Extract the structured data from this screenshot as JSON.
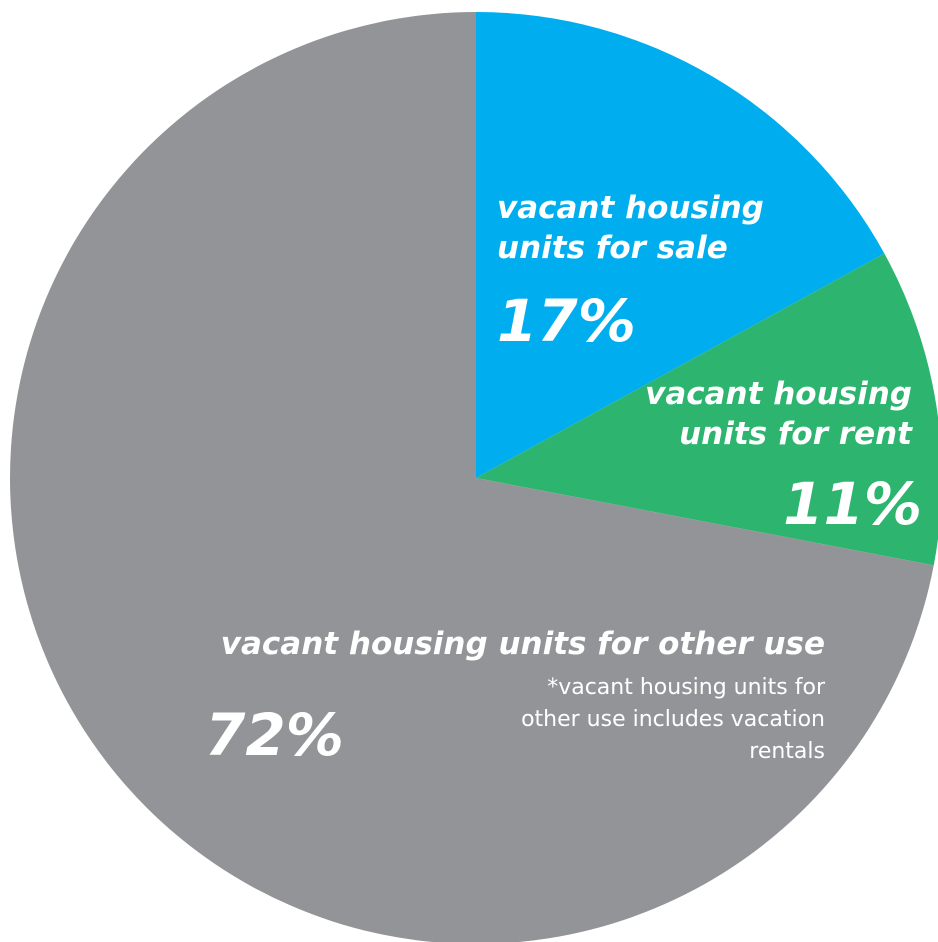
{
  "chart_data": {
    "type": "pie",
    "categories": [
      "vacant housing units for sale",
      "vacant housing units for rent",
      "vacant housing units for other use"
    ],
    "values": [
      17,
      11,
      72
    ],
    "value_labels": [
      "17%",
      "11%",
      "72%"
    ],
    "colors": [
      "#00aeef",
      "#2db56f",
      "#929497"
    ],
    "annotation": "*vacant housing units for other use includes vacation rentals"
  }
}
